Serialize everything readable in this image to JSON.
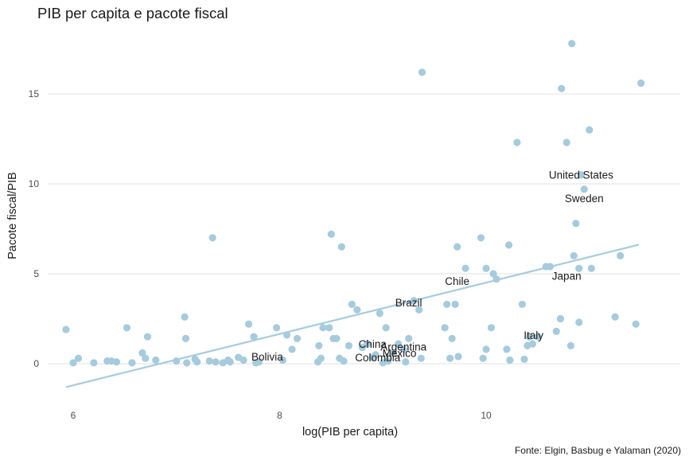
{
  "chart_data": {
    "type": "scatter",
    "title": "PIB per capita e pacote fiscal",
    "xlabel": "log(PIB per capita)",
    "ylabel": "Pacote fiscal/PIB",
    "caption": "Fonte: Elgin, Basbug e Yalaman (2020)",
    "xlim": [
      5.8,
      11.7
    ],
    "ylim": [
      -2.5,
      19
    ],
    "x_ticks": [
      6,
      8,
      10
    ],
    "y_ticks": [
      0,
      5,
      10,
      15
    ],
    "grid": "horizontal major only",
    "point_color": "#a6cbdd",
    "line_color": "#a6cbdd",
    "regression": {
      "x": [
        5.93,
        11.48
      ],
      "y": [
        -1.3,
        6.62
      ]
    },
    "points": [
      [
        5.93,
        1.9
      ],
      [
        6.0,
        0.05
      ],
      [
        6.05,
        0.3
      ],
      [
        6.2,
        0.05
      ],
      [
        6.33,
        0.15
      ],
      [
        6.37,
        0.15
      ],
      [
        6.42,
        0.1
      ],
      [
        6.52,
        2.0
      ],
      [
        6.57,
        0.05
      ],
      [
        6.67,
        0.6
      ],
      [
        6.7,
        0.3
      ],
      [
        6.72,
        1.5
      ],
      [
        6.8,
        0.2
      ],
      [
        7.0,
        0.15
      ],
      [
        7.08,
        2.6
      ],
      [
        7.09,
        1.4
      ],
      [
        7.1,
        0.05
      ],
      [
        7.18,
        0.25
      ],
      [
        7.2,
        0.1
      ],
      [
        7.32,
        0.15
      ],
      [
        7.35,
        7.0
      ],
      [
        7.38,
        0.1
      ],
      [
        7.45,
        0.05
      ],
      [
        7.5,
        0.2
      ],
      [
        7.52,
        0.1
      ],
      [
        7.6,
        0.35
      ],
      [
        7.65,
        0.2
      ],
      [
        7.7,
        2.2
      ],
      [
        7.75,
        1.5
      ],
      [
        7.77,
        0.05
      ],
      [
        7.8,
        0.1
      ],
      [
        7.97,
        2.0
      ],
      [
        8.03,
        0.2
      ],
      [
        8.07,
        1.6
      ],
      [
        8.12,
        0.8
      ],
      [
        8.17,
        1.4
      ],
      [
        8.37,
        0.1
      ],
      [
        8.38,
        1.0
      ],
      [
        8.4,
        0.3
      ],
      [
        8.42,
        2.0
      ],
      [
        8.48,
        2.0
      ],
      [
        8.5,
        7.2
      ],
      [
        8.52,
        1.4
      ],
      [
        8.55,
        1.4
      ],
      [
        8.58,
        0.3
      ],
      [
        8.6,
        6.5
      ],
      [
        8.62,
        0.15
      ],
      [
        8.67,
        1.0
      ],
      [
        8.7,
        3.3
      ],
      [
        8.75,
        3.0
      ],
      [
        8.8,
        0.9
      ],
      [
        8.85,
        1.1
      ],
      [
        8.9,
        0.35
      ],
      [
        8.93,
        0.5
      ],
      [
        8.97,
        2.8
      ],
      [
        9.0,
        0.05
      ],
      [
        9.03,
        2.0
      ],
      [
        9.05,
        0.15
      ],
      [
        9.1,
        0.6
      ],
      [
        9.15,
        1.1
      ],
      [
        9.2,
        0.8
      ],
      [
        9.22,
        0.1
      ],
      [
        9.25,
        1.4
      ],
      [
        9.3,
        3.5
      ],
      [
        9.35,
        3.0
      ],
      [
        9.37,
        0.3
      ],
      [
        9.38,
        16.2
      ],
      [
        9.6,
        2.0
      ],
      [
        9.62,
        3.3
      ],
      [
        9.65,
        0.3
      ],
      [
        9.67,
        1.4
      ],
      [
        9.7,
        3.3
      ],
      [
        9.72,
        6.5
      ],
      [
        9.73,
        0.4
      ],
      [
        9.8,
        5.3
      ],
      [
        9.95,
        7.0
      ],
      [
        9.97,
        0.3
      ],
      [
        10.0,
        0.8
      ],
      [
        10.0,
        5.3
      ],
      [
        10.05,
        2.0
      ],
      [
        10.07,
        5.0
      ],
      [
        10.1,
        4.7
      ],
      [
        10.2,
        0.8
      ],
      [
        10.22,
        6.6
      ],
      [
        10.23,
        0.2
      ],
      [
        10.3,
        12.3
      ],
      [
        10.35,
        3.3
      ],
      [
        10.37,
        0.25
      ],
      [
        10.4,
        1.0
      ],
      [
        10.42,
        1.5
      ],
      [
        10.45,
        1.1
      ],
      [
        10.5,
        1.5
      ],
      [
        10.58,
        5.4
      ],
      [
        10.62,
        5.4
      ],
      [
        10.68,
        1.8
      ],
      [
        10.72,
        2.5
      ],
      [
        10.73,
        15.3
      ],
      [
        10.78,
        12.3
      ],
      [
        10.82,
        1.0
      ],
      [
        10.83,
        17.8
      ],
      [
        10.85,
        6.0
      ],
      [
        10.87,
        7.8
      ],
      [
        10.9,
        2.3
      ],
      [
        10.9,
        5.3
      ],
      [
        10.92,
        10.5
      ],
      [
        10.95,
        9.7
      ],
      [
        11.0,
        13.0
      ],
      [
        11.02,
        5.3
      ],
      [
        11.25,
        2.6
      ],
      [
        11.3,
        6.0
      ],
      [
        11.45,
        2.2
      ],
      [
        11.5,
        15.6
      ]
    ],
    "labels": [
      {
        "text": "United States",
        "x": 10.92,
        "y": 10.5
      },
      {
        "text": "Sweden",
        "x": 10.95,
        "y": 9.2
      },
      {
        "text": "Chile",
        "x": 9.72,
        "y": 4.6
      },
      {
        "text": "Japan",
        "x": 10.78,
        "y": 4.9
      },
      {
        "text": "Brazil",
        "x": 9.25,
        "y": 3.4
      },
      {
        "text": "Italy",
        "x": 10.46,
        "y": 1.6
      },
      {
        "text": "China",
        "x": 8.9,
        "y": 1.1
      },
      {
        "text": "Argentina",
        "x": 9.2,
        "y": 0.95
      },
      {
        "text": "Mexico",
        "x": 9.16,
        "y": 0.6
      },
      {
        "text": "Colombia",
        "x": 8.95,
        "y": 0.35
      },
      {
        "text": "Bolivia",
        "x": 7.88,
        "y": 0.4
      }
    ]
  }
}
